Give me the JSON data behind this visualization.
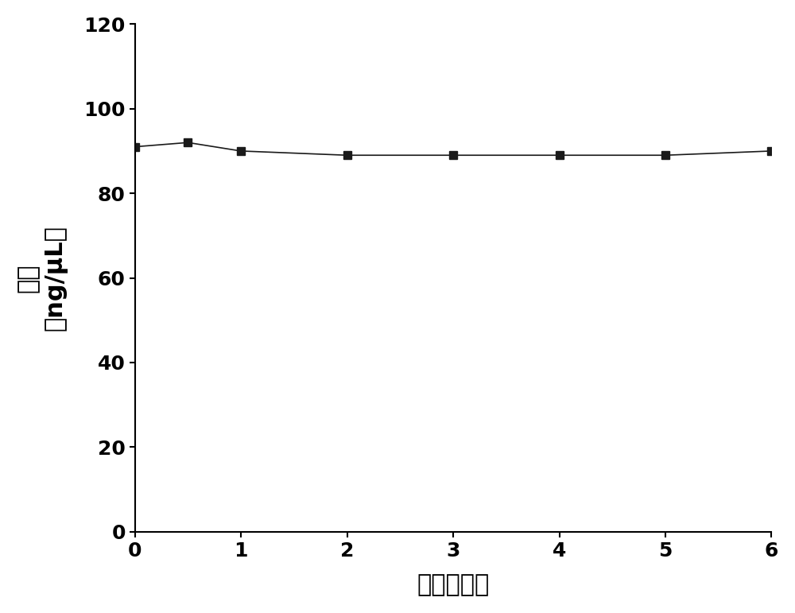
{
  "x": [
    0,
    0.5,
    1,
    2,
    3,
    4,
    5,
    6
  ],
  "y": [
    91,
    92,
    90,
    89,
    89,
    89,
    89,
    90
  ],
  "xlabel": "时间（月）",
  "ylabel_line1": "浓度",
  "ylabel_line2": "（ng/μL）",
  "xlim": [
    0,
    6
  ],
  "ylim": [
    0,
    120
  ],
  "xticks": [
    0,
    1,
    2,
    3,
    4,
    5,
    6
  ],
  "yticks": [
    0,
    20,
    40,
    60,
    80,
    100,
    120
  ],
  "line_color": "#1a1a1a",
  "marker": "s",
  "marker_color": "#1a1a1a",
  "marker_size": 7,
  "line_width": 1.2,
  "background_color": "#ffffff",
  "tick_fontsize": 18,
  "label_fontsize": 22,
  "font_weight": "bold"
}
